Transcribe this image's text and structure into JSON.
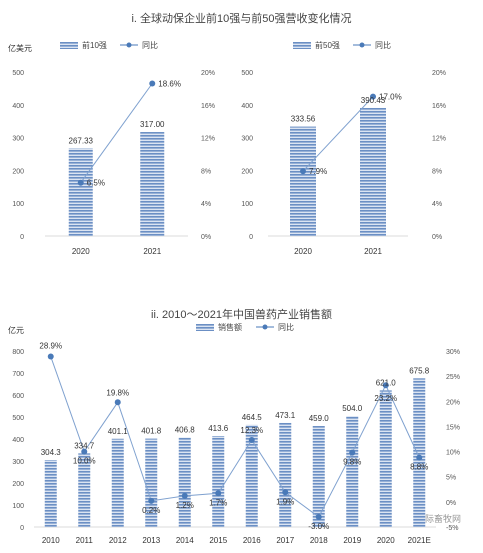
{
  "section_titles": {
    "top": "i. 全球动保企业前10强与前50强营收变化情况",
    "bottom": "ii. 2010～2021年中国兽药产业销售额"
  },
  "watermark": "国际畜牧网",
  "chart_data": [
    {
      "type": "bar",
      "id": "top10",
      "categories": [
        "2020",
        "2021"
      ],
      "series": [
        {
          "name": "前10强",
          "kind": "bar",
          "values": [
            267.33,
            317.0
          ],
          "labels": [
            "267.33",
            "317.00"
          ],
          "axis": "left"
        },
        {
          "name": "同比",
          "kind": "line",
          "values": [
            6.5,
            18.6
          ],
          "labels": [
            "6.5%",
            "18.6%"
          ],
          "axis": "right"
        }
      ],
      "ylabel": "亿美元",
      "ylim": [
        0,
        500
      ],
      "yticks": [
        "0",
        "100",
        "200",
        "300",
        "400",
        "500"
      ],
      "y2lim": [
        0,
        20
      ],
      "y2ticks": [
        "0%",
        "4%",
        "8%",
        "12%",
        "16%",
        "20%"
      ],
      "legend": "top",
      "grid": false,
      "colors": {
        "bar": "#6b8fc4",
        "line": "#4a7ab8"
      }
    },
    {
      "type": "bar",
      "id": "top50",
      "categories": [
        "2020",
        "2021"
      ],
      "series": [
        {
          "name": "前50强",
          "kind": "bar",
          "values": [
            333.56,
            390.43
          ],
          "labels": [
            "333.56",
            "390.43"
          ],
          "axis": "left"
        },
        {
          "name": "同比",
          "kind": "line",
          "values": [
            7.9,
            17.0
          ],
          "labels": [
            "7.9%",
            "17.0%"
          ],
          "axis": "right"
        }
      ],
      "ylim": [
        0,
        500
      ],
      "yticks": [
        "0",
        "100",
        "200",
        "300",
        "400",
        "500"
      ],
      "y2lim": [
        0,
        20
      ],
      "y2ticks": [
        "0%",
        "4%",
        "8%",
        "12%",
        "16%",
        "20%"
      ],
      "legend": "top",
      "grid": false,
      "colors": {
        "bar": "#6b8fc4",
        "line": "#4a7ab8"
      }
    },
    {
      "type": "bar",
      "id": "china",
      "categories": [
        "2010",
        "2011",
        "2012",
        "2013",
        "2014",
        "2015",
        "2016",
        "2017",
        "2018",
        "2019",
        "2020",
        "2021E"
      ],
      "series": [
        {
          "name": "销售额",
          "kind": "bar",
          "values": [
            304.3,
            334.7,
            401.1,
            401.8,
            406.8,
            413.6,
            464.5,
            473.1,
            459.0,
            504.0,
            621.0,
            675.8
          ],
          "labels": [
            "304.3",
            "334.7",
            "401.1",
            "401.8",
            "406.8",
            "413.6",
            "464.5",
            "473.1",
            "459.0",
            "504.0",
            "621.0",
            "675.8"
          ],
          "axis": "left"
        },
        {
          "name": "同比",
          "kind": "line",
          "values": [
            28.9,
            10.0,
            19.8,
            0.2,
            1.2,
            1.7,
            12.3,
            1.9,
            -3.0,
            9.8,
            23.2,
            8.8
          ],
          "labels": [
            "28.9%",
            "10.0%",
            "19.8%",
            "0.2%",
            "1.2%",
            "1.7%",
            "12.3%",
            "1.9%",
            "-3.0%",
            "9.8%",
            "23.2%",
            "8.8%"
          ],
          "axis": "right"
        }
      ],
      "ylabel": "亿元",
      "ylim": [
        0,
        800
      ],
      "yticks": [
        "0",
        "100",
        "200",
        "300",
        "400",
        "500",
        "600",
        "700",
        "800"
      ],
      "y2lim": [
        -5,
        30
      ],
      "y2ticks": [
        "-5%",
        "0%",
        "5%",
        "10%",
        "15%",
        "20%",
        "25%",
        "30%"
      ],
      "legend": "top",
      "grid": false,
      "colors": {
        "bar": "#6b8fc4",
        "line": "#4a7ab8"
      }
    }
  ]
}
